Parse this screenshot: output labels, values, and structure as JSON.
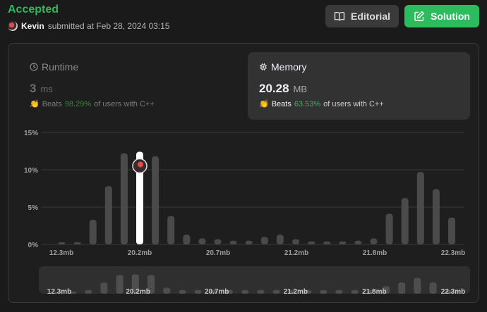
{
  "header": {
    "status": "Accepted",
    "submitter_name": "Kevin",
    "submitted_text": "submitted at Feb 28, 2024 03:15",
    "editorial_label": "Editorial",
    "solution_label": "Solution"
  },
  "runtime": {
    "title": "Runtime",
    "value": "3",
    "unit": "ms",
    "beats_word": "Beats",
    "beats_pct": "98.29%",
    "beats_suffix": "of users with C++",
    "icon": "clock-icon"
  },
  "memory": {
    "title": "Memory",
    "value": "20.28",
    "unit": "MB",
    "beats_word": "Beats",
    "beats_pct": "63.53%",
    "beats_suffix": "of users with C++",
    "icon": "chip-icon"
  },
  "colors": {
    "accent_green": "#2cbb5d",
    "bar": "#4a4a4a",
    "bar_selected": "#ffffff"
  },
  "chart_data": {
    "type": "bar",
    "ylabel": "",
    "xlabel": "",
    "y_ticks": [
      "15%",
      "10%",
      "5%",
      "0%"
    ],
    "ylim": [
      0,
      15
    ],
    "x_tick_labels": [
      "12.3mb",
      "20.2mb",
      "20.7mb",
      "21.2mb",
      "21.8mb",
      "22.3mb"
    ],
    "values": [
      0.3,
      0.3,
      3.3,
      7.8,
      12.2,
      12.4,
      11.8,
      3.8,
      1.3,
      0.8,
      0.7,
      0.5,
      0.5,
      1.0,
      1.3,
      0.7,
      0.4,
      0.4,
      0.4,
      0.5,
      0.8,
      4.1,
      6.2,
      9.7,
      7.4,
      3.6
    ],
    "selected_index": 5,
    "grid": true,
    "navigator_values": [
      0.3,
      0.5,
      1.5,
      2.5,
      2.6,
      2.5,
      0.8,
      0.5,
      0.5,
      0.5,
      0.5,
      0.5,
      0.5,
      0.5,
      0.5,
      0.5,
      0.5,
      0.5,
      0.5,
      0.5,
      1.0,
      1.5,
      2.1,
      1.5,
      0.5
    ],
    "navigator_tick_labels": [
      "12.3mb",
      "20.2mb",
      "20.7mb",
      "21.2mb",
      "21.8mb",
      "22.3mb"
    ]
  }
}
